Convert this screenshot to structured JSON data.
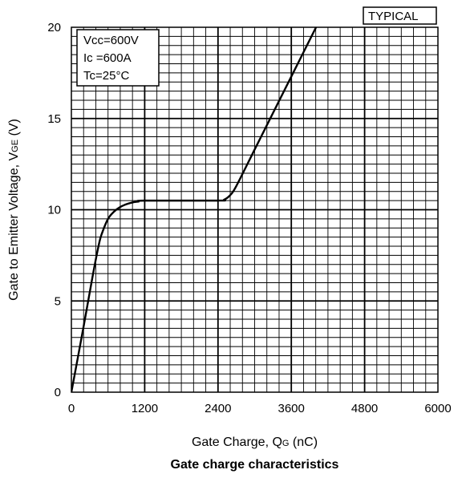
{
  "chart_data": {
    "type": "line",
    "title": "Gate charge characteristics",
    "badge": "TYPICAL",
    "xlabel": {
      "prefix": "Gate Charge, Q",
      "subscript": "G",
      "suffix": " (nC)"
    },
    "ylabel": {
      "prefix": "Gate to Emitter Voltage, V",
      "subscript": "GE",
      "suffix": " (V)"
    },
    "xlim": [
      0,
      6000
    ],
    "ylim": [
      0,
      20
    ],
    "xticks": [
      "0",
      "1200",
      "2400",
      "3600",
      "4800",
      "6000"
    ],
    "yticks": [
      "0",
      "5",
      "10",
      "15",
      "20"
    ],
    "grid": true,
    "annotations": [
      "Vcc=600V",
      "Ic =600A",
      "Tc=25°C"
    ],
    "series": [
      {
        "x": [
          0,
          200,
          350,
          450,
          500,
          600,
          700,
          800,
          900,
          1000,
          1100,
          1200,
          2400,
          2500,
          2600,
          2700,
          3000,
          3300,
          3600,
          3900,
          4050
        ],
        "y": [
          0,
          3.6,
          6.4,
          8.1,
          8.7,
          9.5,
          9.9,
          10.15,
          10.3,
          10.4,
          10.45,
          10.5,
          10.5,
          10.55,
          10.8,
          11.3,
          13.3,
          15.3,
          17.3,
          19.3,
          20.3
        ]
      }
    ]
  }
}
